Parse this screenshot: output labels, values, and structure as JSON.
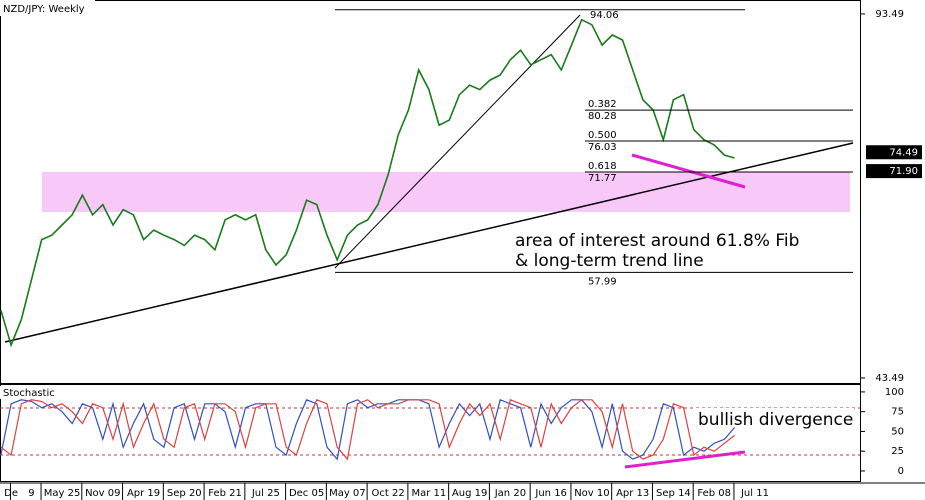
{
  "chart_data": [
    {
      "type": "line",
      "title": "NZD/JPY: Weekly",
      "categories": [
        null,
        "De",
        null,
        "9",
        null,
        null,
        "May 25",
        null,
        null,
        null,
        "Nov 09",
        null,
        null,
        null,
        "Apr 19",
        null,
        null,
        null,
        "Sep 20",
        null,
        null,
        null,
        "Feb 21",
        null,
        null,
        null,
        "Jul 25",
        null,
        null,
        null,
        "Dec 05",
        null,
        null,
        null,
        "May 07",
        null,
        null,
        null,
        "Oct 22",
        null,
        null,
        null,
        "Mar 11",
        null,
        null,
        null,
        "Aug 19",
        null,
        null,
        null,
        "Jan 20",
        null,
        null,
        null,
        "Jun 16",
        null,
        null,
        null,
        "Nov 10",
        null,
        null,
        null,
        "Apr 13",
        null,
        null,
        null,
        "Sep 14",
        null,
        null,
        null,
        "Feb 08",
        null,
        null,
        null,
        "Jul 11"
      ],
      "series": [
        {
          "color": "#1a7a1a",
          "values": [
            52.8,
            48.0,
            51.5,
            57.0,
            62.5,
            63.1,
            64.5,
            65.9,
            68.6,
            65.9,
            67.3,
            64.5,
            66.6,
            65.9,
            62.5,
            63.8,
            63.1,
            62.5,
            61.7,
            63.1,
            62.5,
            61.1,
            65.2,
            65.9,
            65.2,
            65.9,
            61.1,
            59.0,
            60.4,
            63.8,
            67.9,
            67.3,
            63.1,
            59.7,
            63.1,
            64.5,
            65.2,
            67.3,
            71.4,
            76.9,
            80.3,
            85.8,
            83.1,
            78.2,
            78.9,
            82.4,
            83.7,
            83.1,
            84.4,
            85.1,
            87.2,
            88.5,
            86.5,
            87.2,
            87.9,
            85.8,
            89.2,
            92.7,
            92.0,
            89.2,
            90.6,
            89.9,
            85.8,
            81.7,
            80.3,
            76.2,
            81.7,
            82.4,
            77.6,
            76.2,
            75.5,
            74.1,
            73.7,
            null,
            null
          ]
        }
      ],
      "ylim": [
        42.8,
        95.4
      ],
      "yticks": [
        93.49,
        43.49
      ],
      "price_tags": [
        74.49,
        {
          "value": 71.9,
          "label": "71.90"
        }
      ],
      "fib_high": 94.06,
      "fib_low": 57.99,
      "fib_levels": [
        {
          "ratio": 0.382,
          "price": 80.28
        },
        {
          "ratio": {
            "value": 0.5,
            "label": "0.500"
          },
          "price": 76.03
        },
        {
          "ratio": 0.618,
          "price": 71.77
        }
      ],
      "annotations": [
        "area of interest around 61.8% Fib",
        "& long-term trend line"
      ]
    },
    {
      "type": "line",
      "title": "Stochastic",
      "series": [
        {
          "color": "#3050c0",
          "values": [
            20,
            85,
            90,
            88,
            80,
            85,
            75,
            60,
            85,
            80,
            40,
            85,
            30,
            60,
            85,
            40,
            30,
            80,
            85,
            40,
            85,
            85,
            75,
            30,
            80,
            85,
            85,
            30,
            20,
            60,
            90,
            85,
            30,
            15,
            85,
            90,
            80,
            85,
            85,
            90,
            90,
            90,
            85,
            30,
            60,
            85,
            70,
            85,
            40,
            90,
            85,
            80,
            30,
            85,
            60,
            80,
            90,
            90,
            75,
            30,
            85,
            25,
            15,
            20,
            40,
            85,
            80,
            20,
            30,
            25,
            35,
            40,
            55,
            null,
            null
          ]
        },
        {
          "color": "#e04040",
          "values": [
            30,
            20,
            85,
            90,
            88,
            80,
            85,
            75,
            60,
            85,
            80,
            40,
            85,
            30,
            60,
            85,
            40,
            30,
            80,
            85,
            40,
            85,
            85,
            75,
            30,
            80,
            85,
            85,
            30,
            20,
            60,
            90,
            85,
            30,
            15,
            85,
            90,
            80,
            85,
            85,
            90,
            90,
            90,
            85,
            30,
            60,
            85,
            70,
            85,
            40,
            90,
            85,
            80,
            30,
            85,
            60,
            80,
            90,
            90,
            75,
            30,
            85,
            25,
            15,
            20,
            40,
            85,
            80,
            20,
            30,
            25,
            35,
            45,
            null,
            null
          ]
        }
      ],
      "ylim": [
        -14,
        110
      ],
      "yticks": [
        100,
        75,
        50,
        25,
        0
      ],
      "annotations": [
        "bullish divergence"
      ]
    }
  ]
}
